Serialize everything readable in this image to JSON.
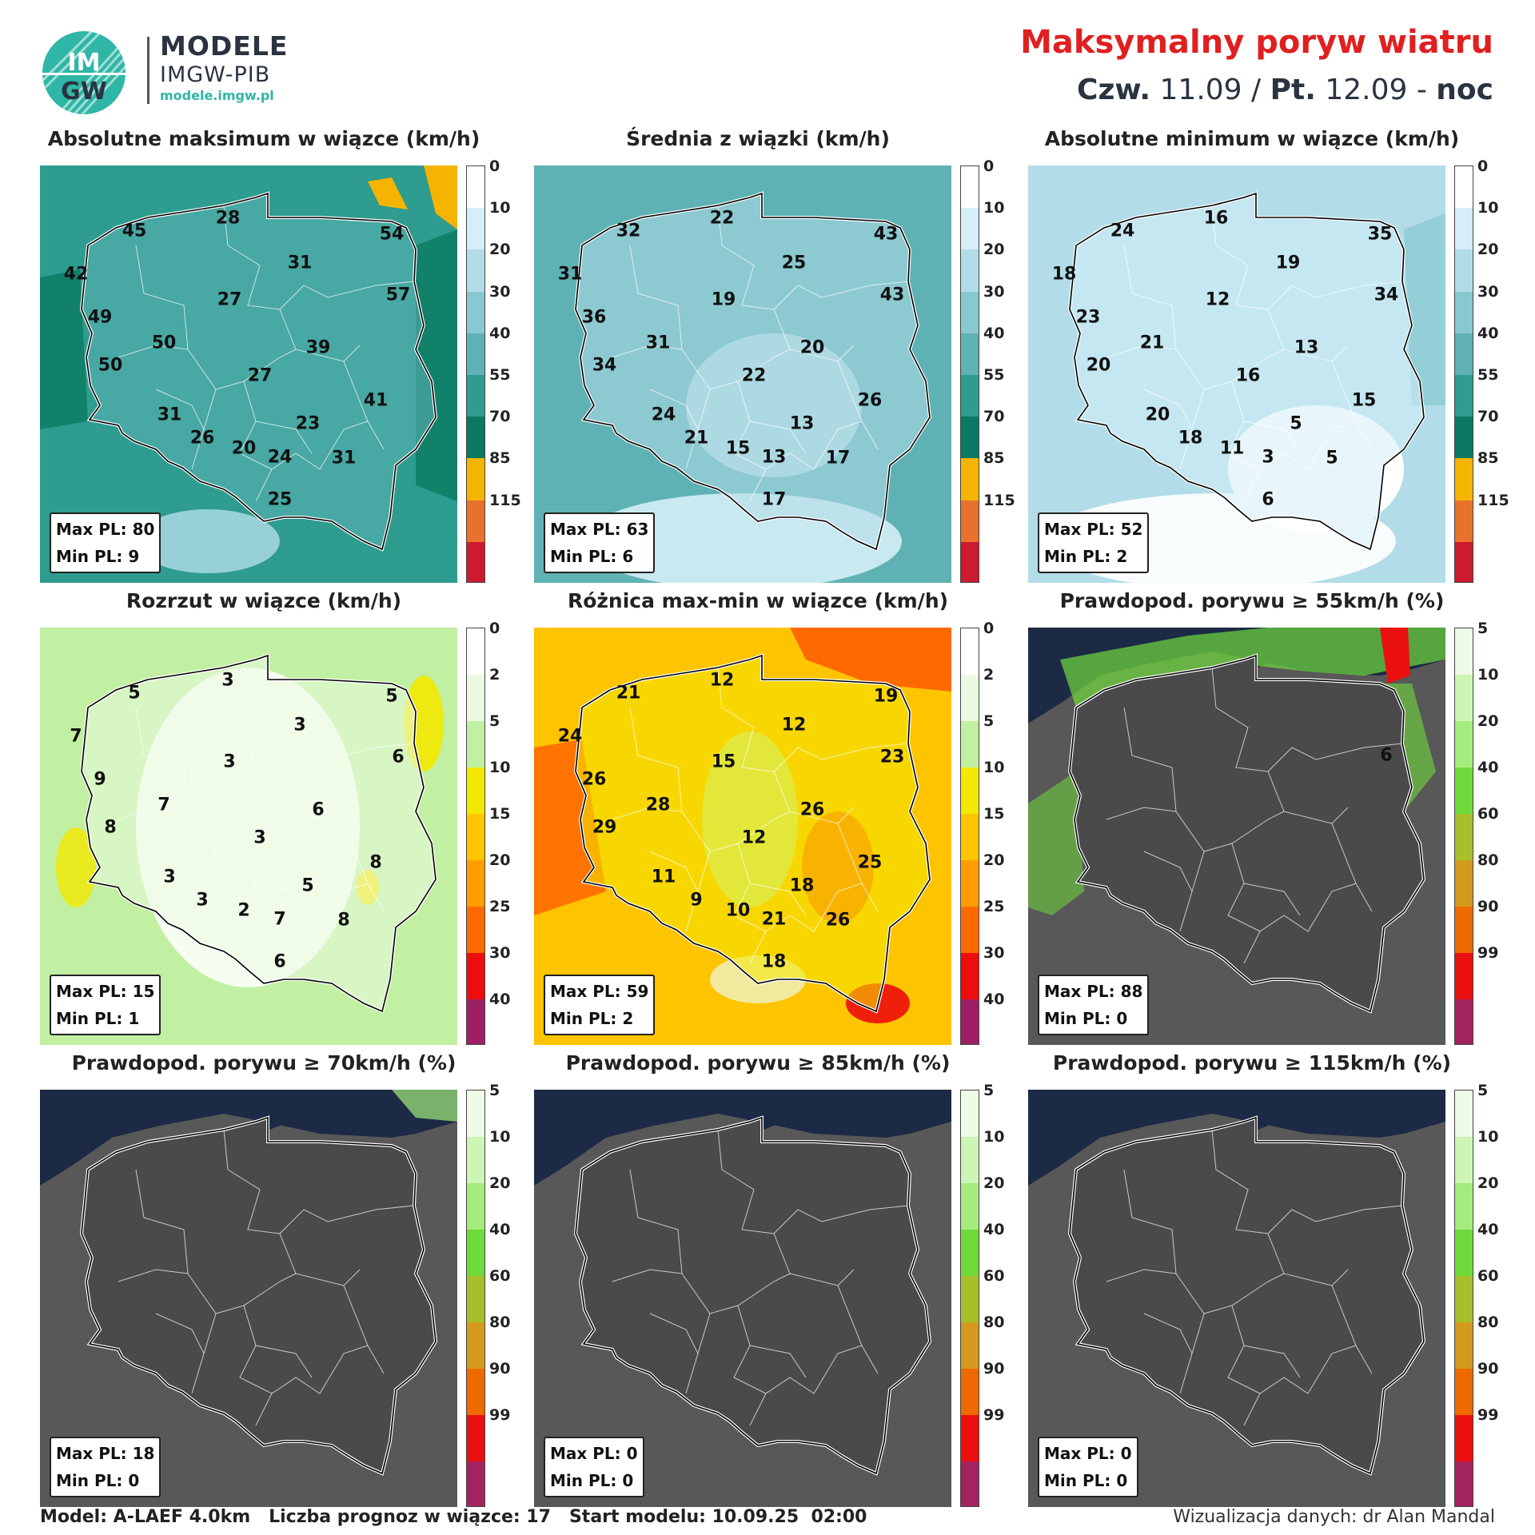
{
  "header": {
    "logo_text_top": "IM",
    "logo_text_bottom": "GW",
    "brand_line1": "MODELE",
    "brand_line2": "IMGW-PIB",
    "brand_url": "modele.imgw.pl",
    "title": "Maksymalny poryw wiatru",
    "subtitle_day1": "Czw.",
    "subtitle_date1": "11.09 /",
    "subtitle_day2": "Pt.",
    "subtitle_date2": "12.09 -",
    "subtitle_period": "noc"
  },
  "scales": {
    "speed": {
      "ticks": [
        "0",
        "10",
        "20",
        "30",
        "40",
        "55",
        "70",
        "85",
        "115"
      ],
      "colors": [
        "#ffffff",
        "#d5eef7",
        "#b2dde8",
        "#88c8d0",
        "#5fb2b4",
        "#2e9c8e",
        "#0b7a62",
        "#f5b400",
        "#e8722c",
        "#cc1a2e"
      ]
    },
    "spread": {
      "ticks": [
        "0",
        "2",
        "5",
        "10",
        "15",
        "20",
        "25",
        "30",
        "40"
      ],
      "colors": [
        "#ffffff",
        "#ebf9e0",
        "#c2f0a2",
        "#f3e800",
        "#ffc400",
        "#ff9d00",
        "#ff6a00",
        "#ee0d0d",
        "#9e1f63"
      ]
    },
    "prob": {
      "ticks": [
        "5",
        "10",
        "20",
        "40",
        "60",
        "80",
        "90",
        "99"
      ],
      "colors": [
        "#eefbe6",
        "#cdf5b5",
        "#a4ec7c",
        "#6fda3c",
        "#a6bf2a",
        "#d39a1d",
        "#ee6a00",
        "#ea1010",
        "#a3235f"
      ]
    }
  },
  "panels": [
    {
      "title": "Absolutne maksimum w wiązce (km/h)",
      "max_pl": "Max PL: 80",
      "min_pl": "Min PL: 9",
      "labels": [
        "28",
        "45",
        "54",
        "42",
        "31",
        "57",
        "49",
        "27",
        "50",
        "39",
        "50",
        "27",
        "41",
        "31",
        "23",
        "26",
        "20",
        "24",
        "31",
        "25"
      ]
    },
    {
      "title": "Średnia z wiązki (km/h)",
      "max_pl": "Max PL: 63",
      "min_pl": "Min PL: 6",
      "labels": [
        "22",
        "32",
        "43",
        "31",
        "25",
        "43",
        "36",
        "19",
        "31",
        "20",
        "34",
        "22",
        "26",
        "24",
        "13",
        "21",
        "15",
        "13",
        "17",
        "17"
      ]
    },
    {
      "title": "Absolutne minimum w wiązce (km/h)",
      "max_pl": "Max PL: 52",
      "min_pl": "Min PL: 2",
      "labels": [
        "16",
        "24",
        "35",
        "18",
        "19",
        "34",
        "23",
        "12",
        "21",
        "13",
        "20",
        "16",
        "15",
        "20",
        "5",
        "18",
        "11",
        "3",
        "5",
        "6"
      ]
    },
    {
      "title": "Rozrzut w wiązce (km/h)",
      "max_pl": "Max PL: 15",
      "min_pl": "Min PL: 1",
      "labels": [
        "3",
        "5",
        "5",
        "7",
        "3",
        "6",
        "9",
        "3",
        "7",
        "6",
        "8",
        "3",
        "8",
        "3",
        "5",
        "3",
        "2",
        "7",
        "8",
        "6"
      ]
    },
    {
      "title": "Różnica max-min w wiązce (km/h)",
      "max_pl": "Max PL: 59",
      "min_pl": "Min PL: 2",
      "labels": [
        "12",
        "21",
        "19",
        "24",
        "12",
        "23",
        "26",
        "15",
        "28",
        "26",
        "29",
        "12",
        "25",
        "11",
        "18",
        "9",
        "10",
        "21",
        "26",
        "18"
      ]
    },
    {
      "title": "Prawdopod. porywu ≥ 55km/h (%)",
      "max_pl": "Max PL: 88",
      "min_pl": "Min PL: 0",
      "labels": [
        "6"
      ]
    },
    {
      "title": "Prawdopod. porywu ≥ 70km/h (%)",
      "max_pl": "Max PL: 18",
      "min_pl": "Min PL: 0",
      "labels": []
    },
    {
      "title": "Prawdopod. porywu ≥ 85km/h (%)",
      "max_pl": "Max PL: 0",
      "min_pl": "Min PL: 0",
      "labels": []
    },
    {
      "title": "Prawdopod. porywu ≥ 115km/h (%)",
      "max_pl": "Max PL: 0",
      "min_pl": "Min PL: 0",
      "labels": []
    }
  ],
  "footer": {
    "left": "Model: A-LAEF 4.0km   Liczba prognoz w wiązce: 17   Start modelu: 10.09.25  02:00",
    "right": "Wizualizacja danych: dr Alan Mandal"
  }
}
